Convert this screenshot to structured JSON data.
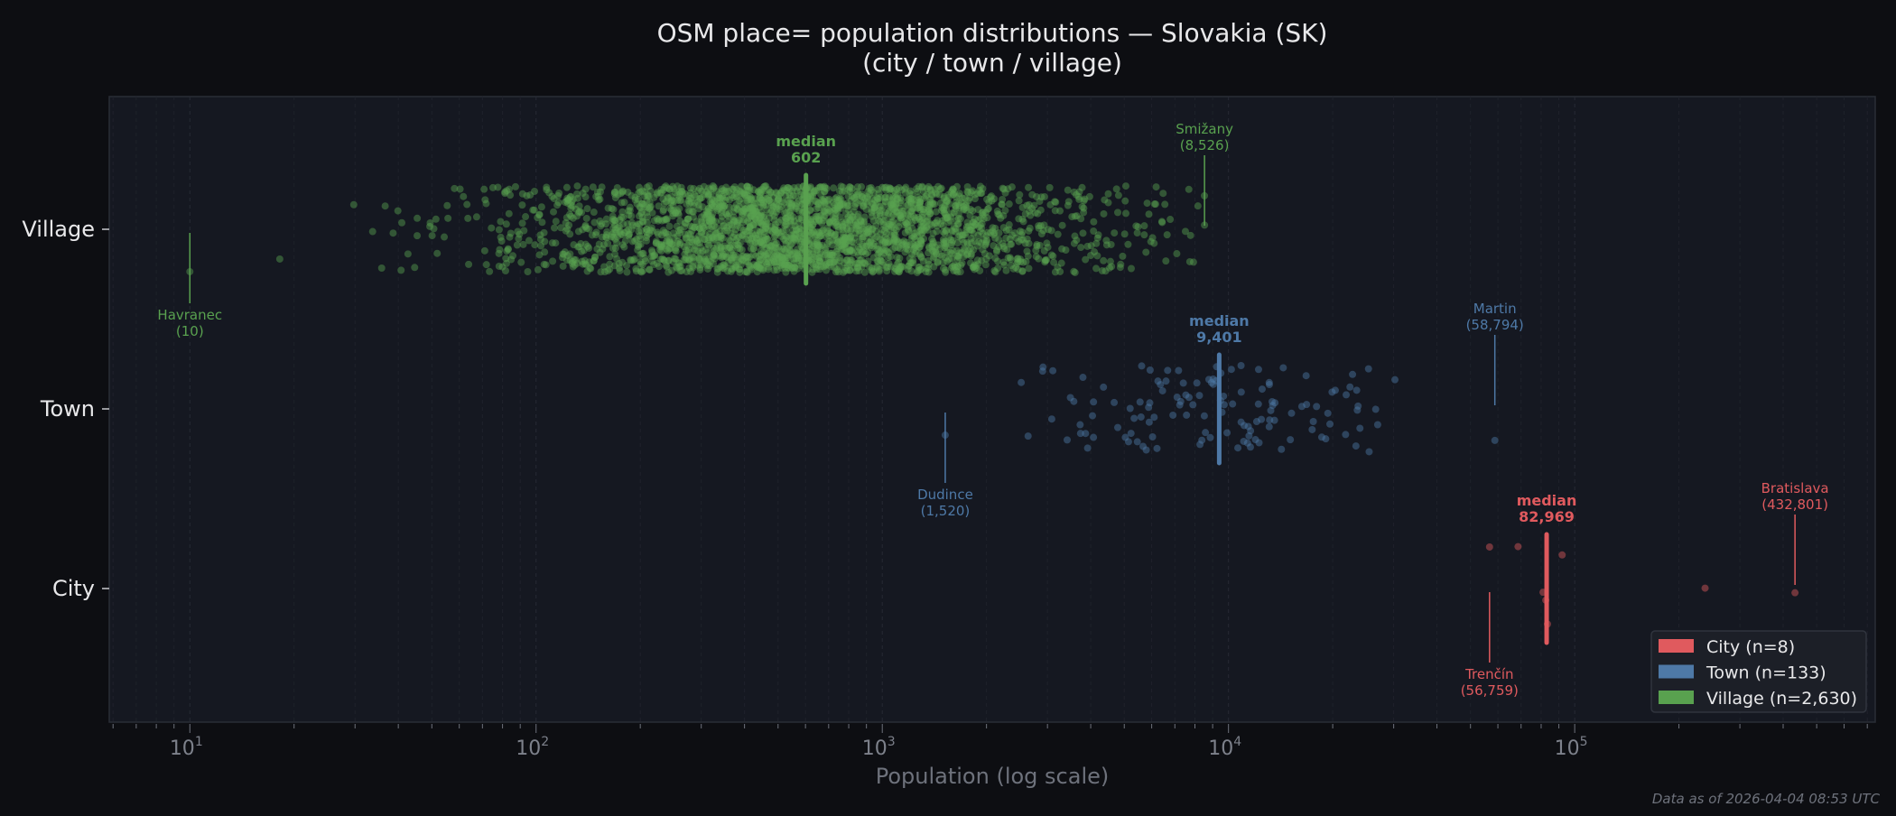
{
  "chart_data": {
    "type": "scatter",
    "title": "OSM place= population distributions — Slovakia (SK)",
    "subtitle": "(city / town / village)",
    "xlabel": "Population (log scale)",
    "ylabel": "",
    "x_scale": "log",
    "xlim": [
      5.85,
      738000
    ],
    "x_ticks": [
      {
        "value": 10,
        "base": "10",
        "exp": "1"
      },
      {
        "value": 100,
        "base": "10",
        "exp": "2"
      },
      {
        "value": 1000,
        "base": "10",
        "exp": "3"
      },
      {
        "value": 10000,
        "base": "10",
        "exp": "4"
      },
      {
        "value": 100000,
        "base": "10",
        "exp": "5"
      }
    ],
    "categories": [
      "City",
      "Town",
      "Village"
    ],
    "grid": "vertical minor+major, dashed",
    "legend_position": "bottom-right",
    "footnote": "Data as of 2026-04-04 08:53 UTC",
    "background": "#0d0e12",
    "plot_background": "#151821",
    "series": [
      {
        "name": "City",
        "legend": "City  (n=8)",
        "color": "#e05a5e",
        "n": 8,
        "median": 82969,
        "median_label": "median",
        "median_text": "82,969",
        "values": [
          56759,
          68600,
          81000,
          82500,
          83438,
          92000,
          238000,
          432801
        ],
        "min": {
          "name": "Trenčín",
          "value": 56759,
          "text": "(56,759)"
        },
        "max": {
          "name": "Bratislava",
          "value": 432801,
          "text": "(432,801)"
        }
      },
      {
        "name": "Town",
        "legend": "Town  (n=133)",
        "color": "#4e79a7",
        "n": 133,
        "median": 9401,
        "median_label": "median",
        "median_text": "9,401",
        "log10_spread": 0.3,
        "min": {
          "name": "Dudince",
          "value": 1520,
          "text": "(1,520)"
        },
        "max": {
          "name": "Martin",
          "value": 58794,
          "text": "(58,794)"
        }
      },
      {
        "name": "Village",
        "legend": "Village  (n=2,630)",
        "color": "#59a14f",
        "n": 2630,
        "median": 602,
        "median_label": "median",
        "median_text": "602",
        "log10_spread": 0.42,
        "min": {
          "name": "Havranec",
          "value": 10,
          "text": "(10)"
        },
        "max": {
          "name": "Smižany",
          "value": 8526,
          "text": "(8,526)"
        }
      }
    ]
  }
}
